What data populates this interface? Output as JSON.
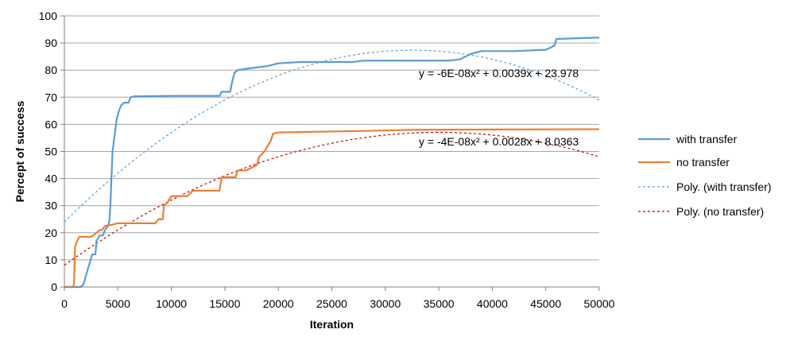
{
  "chart_data": {
    "type": "line",
    "title": "",
    "xlabel": "Iteration",
    "ylabel": "Percept of success",
    "xlim": [
      0,
      50000
    ],
    "ylim": [
      0,
      100
    ],
    "x_ticks": [
      0,
      5000,
      10000,
      15000,
      20000,
      25000,
      30000,
      35000,
      40000,
      45000,
      50000
    ],
    "y_ticks": [
      0,
      10,
      20,
      30,
      40,
      50,
      60,
      70,
      80,
      90,
      100
    ],
    "grid": "horizontal",
    "legend_position": "right",
    "series": [
      {
        "name": "with transfer",
        "color": "#5b9bd5",
        "style": "solid",
        "points": [
          [
            0,
            0
          ],
          [
            1500,
            0
          ],
          [
            1800,
            1
          ],
          [
            2000,
            4
          ],
          [
            2300,
            8
          ],
          [
            2600,
            12
          ],
          [
            2900,
            12
          ],
          [
            3000,
            17
          ],
          [
            3300,
            19
          ],
          [
            3600,
            19
          ],
          [
            3800,
            21
          ],
          [
            4000,
            22
          ],
          [
            4200,
            24
          ],
          [
            4300,
            30
          ],
          [
            4400,
            40
          ],
          [
            4500,
            50
          ],
          [
            4700,
            56
          ],
          [
            4900,
            62
          ],
          [
            5100,
            65
          ],
          [
            5300,
            67
          ],
          [
            5600,
            68
          ],
          [
            6000,
            68
          ],
          [
            6200,
            70
          ],
          [
            6500,
            70.3
          ],
          [
            10000,
            70.5
          ],
          [
            14500,
            70.5
          ],
          [
            14700,
            72
          ],
          [
            15500,
            72
          ],
          [
            15700,
            76
          ],
          [
            15900,
            79
          ],
          [
            16200,
            80
          ],
          [
            17000,
            80.5
          ],
          [
            19000,
            81.5
          ],
          [
            20000,
            82.5
          ],
          [
            22000,
            83
          ],
          [
            27000,
            83
          ],
          [
            28000,
            83.5
          ],
          [
            36000,
            83.5
          ],
          [
            37000,
            84
          ],
          [
            38000,
            86
          ],
          [
            39000,
            87
          ],
          [
            42000,
            87
          ],
          [
            45000,
            87.5
          ],
          [
            45800,
            89
          ],
          [
            46000,
            91.5
          ],
          [
            50000,
            92
          ]
        ]
      },
      {
        "name": "no transfer",
        "color": "#ed7d31",
        "style": "solid",
        "points": [
          [
            0,
            0
          ],
          [
            800,
            0
          ],
          [
            900,
            1
          ],
          [
            1000,
            15
          ],
          [
            1200,
            17
          ],
          [
            1400,
            18.5
          ],
          [
            2500,
            18.5
          ],
          [
            2700,
            19
          ],
          [
            3000,
            20
          ],
          [
            3300,
            21
          ],
          [
            3500,
            21
          ],
          [
            3800,
            22.5
          ],
          [
            4500,
            23
          ],
          [
            5000,
            23.5
          ],
          [
            8500,
            23.5
          ],
          [
            8800,
            25
          ],
          [
            9200,
            25
          ],
          [
            9300,
            30
          ],
          [
            9600,
            31
          ],
          [
            10000,
            33.5
          ],
          [
            11500,
            33.5
          ],
          [
            12000,
            35.5
          ],
          [
            14500,
            35.5
          ],
          [
            14700,
            40.5
          ],
          [
            16000,
            40.5
          ],
          [
            16200,
            43
          ],
          [
            17000,
            43
          ],
          [
            17500,
            44
          ],
          [
            18000,
            45
          ],
          [
            18200,
            48
          ],
          [
            18700,
            50
          ],
          [
            19000,
            52
          ],
          [
            19300,
            54
          ],
          [
            19500,
            56.5
          ],
          [
            20000,
            57
          ],
          [
            27000,
            57.5
          ],
          [
            33000,
            58
          ],
          [
            50000,
            58.2
          ]
        ]
      },
      {
        "name": "Poly. (with transfer)",
        "color": "#5b9bd5",
        "style": "dotted",
        "coefficients": [
          -6e-08,
          0.0039,
          23.978
        ],
        "equation_label": "y = -6E-08x² + 0.0039x + 23.978"
      },
      {
        "name": "Poly. (no transfer)",
        "color": "#c00000",
        "style": "dotted",
        "coefficients": [
          -4e-08,
          0.0028,
          8.0363
        ],
        "equation_label": "y = -4E-08x² + 0.0028x + 8.0363"
      }
    ]
  }
}
